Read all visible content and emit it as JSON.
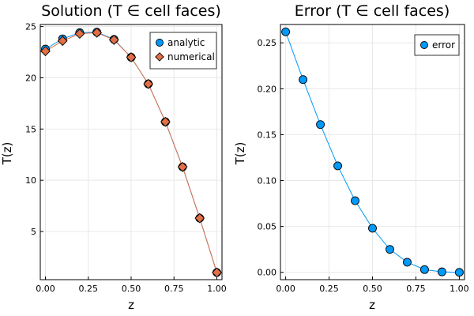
{
  "chart_data": [
    {
      "type": "scatter",
      "title": "Solution (T ∈ cell faces)",
      "xlabel": "z",
      "ylabel": "T(z)",
      "xlim": [
        -0.03,
        1.03
      ],
      "ylim": [
        0.3,
        25.2
      ],
      "xticks": [
        0.0,
        0.25,
        0.5,
        0.75,
        1.0
      ],
      "xtick_labels": [
        "0.00",
        "0.25",
        "0.50",
        "0.75",
        "1.00"
      ],
      "yticks": [
        5,
        10,
        15,
        20,
        25
      ],
      "ytick_labels": [
        "5",
        "10",
        "15",
        "20",
        "25"
      ],
      "grid": true,
      "legend_position": "top-right",
      "x": [
        0.0,
        0.1,
        0.2,
        0.3,
        0.4,
        0.5,
        0.6,
        0.7,
        0.8,
        0.9,
        1.0
      ],
      "series": [
        {
          "name": "analytic",
          "marker": "circle",
          "color": "#009AFA",
          "values": [
            22.8,
            23.8,
            24.4,
            24.45,
            23.75,
            22.0,
            19.4,
            15.7,
            11.3,
            6.3,
            1.0
          ]
        },
        {
          "name": "numerical",
          "marker": "diamond",
          "color": "#E26F46",
          "values": [
            22.6,
            23.6,
            24.3,
            24.4,
            23.7,
            22.0,
            19.4,
            15.7,
            11.3,
            6.3,
            1.0
          ]
        }
      ]
    },
    {
      "type": "line",
      "title": "Error (T ∈ cell faces)",
      "xlabel": "z",
      "ylabel": "T(z)",
      "xlim": [
        -0.03,
        1.03
      ],
      "ylim": [
        -0.008,
        0.27
      ],
      "xticks": [
        0.0,
        0.25,
        0.5,
        0.75,
        1.0
      ],
      "xtick_labels": [
        "0.00",
        "0.25",
        "0.50",
        "0.75",
        "1.00"
      ],
      "yticks": [
        0.0,
        0.05,
        0.1,
        0.15,
        0.2,
        0.25
      ],
      "ytick_labels": [
        "0.00",
        "0.05",
        "0.10",
        "0.15",
        "0.20",
        "0.25"
      ],
      "grid": true,
      "legend_position": "top-right",
      "x": [
        0.0,
        0.1,
        0.2,
        0.3,
        0.4,
        0.5,
        0.6,
        0.7,
        0.8,
        0.9,
        1.0
      ],
      "series": [
        {
          "name": "error",
          "marker": "circle",
          "color": "#009AFA",
          "values": [
            0.262,
            0.21,
            0.161,
            0.116,
            0.078,
            0.048,
            0.025,
            0.011,
            0.003,
            0.0005,
            0.0
          ]
        }
      ]
    }
  ]
}
